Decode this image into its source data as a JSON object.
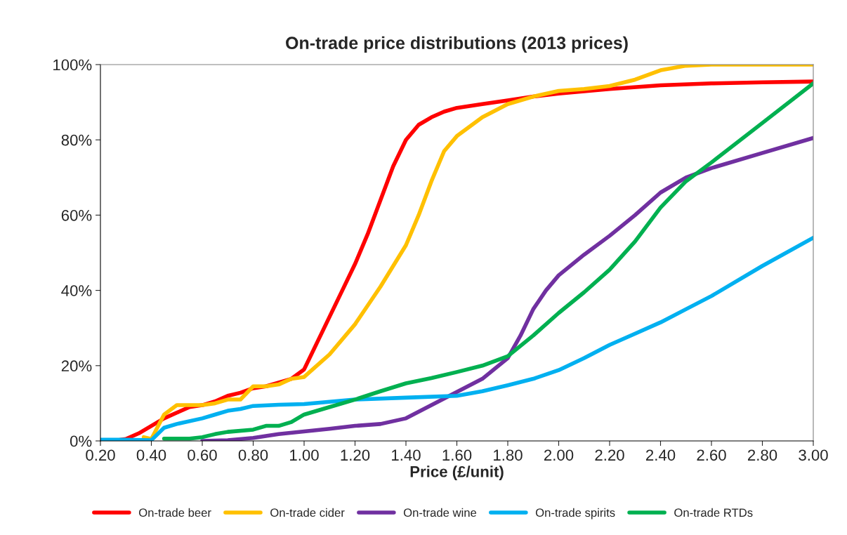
{
  "chart_data": {
    "type": "line",
    "title": "On-trade price distributions (2013 prices)",
    "xlabel": "Price (£/unit)",
    "xlim": [
      0.2,
      3.0
    ],
    "xticks": [
      {
        "value": 0.2,
        "label": "0.20"
      },
      {
        "value": 0.4,
        "label": "0.40"
      },
      {
        "value": 0.6,
        "label": "0.60"
      },
      {
        "value": 0.8,
        "label": "0.80"
      },
      {
        "value": 1.0,
        "label": "1.00"
      },
      {
        "value": 1.2,
        "label": "1.20"
      },
      {
        "value": 1.4,
        "label": "1.40"
      },
      {
        "value": 1.6,
        "label": "1.60"
      },
      {
        "value": 1.8,
        "label": "1.80"
      },
      {
        "value": 2.0,
        "label": "2.00"
      },
      {
        "value": 2.2,
        "label": "2.20"
      },
      {
        "value": 2.4,
        "label": "2.40"
      },
      {
        "value": 2.6,
        "label": "2.60"
      },
      {
        "value": 2.8,
        "label": "2.80"
      },
      {
        "value": 3.0,
        "label": "3.00"
      }
    ],
    "ylim": [
      0,
      100
    ],
    "yticks": [
      {
        "value": 0,
        "label": "0%"
      },
      {
        "value": 20,
        "label": "20%"
      },
      {
        "value": 40,
        "label": "40%"
      },
      {
        "value": 60,
        "label": "60%"
      },
      {
        "value": 80,
        "label": "80%"
      },
      {
        "value": 100,
        "label": "100%"
      }
    ],
    "grid": false,
    "legend": "bottom",
    "marker": "none",
    "line_style": "solid",
    "series": [
      {
        "name": "On-trade beer",
        "color": "#ff0000",
        "x": [
          0.2,
          0.25,
          0.3,
          0.35,
          0.4,
          0.45,
          0.5,
          0.55,
          0.6,
          0.65,
          0.7,
          0.75,
          0.8,
          0.85,
          0.9,
          0.95,
          1.0,
          1.05,
          1.1,
          1.15,
          1.2,
          1.25,
          1.3,
          1.35,
          1.4,
          1.45,
          1.5,
          1.55,
          1.6,
          1.7,
          1.8,
          1.9,
          2.0,
          2.2,
          2.4,
          2.6,
          2.8,
          3.0
        ],
        "values": [
          0,
          0,
          0.5,
          2,
          4,
          6,
          7.5,
          9,
          9.5,
          10.5,
          12,
          12.8,
          14,
          14.5,
          15.5,
          16.5,
          19,
          26,
          33,
          40,
          47,
          55,
          64,
          73,
          80,
          84,
          86,
          87.5,
          88.5,
          89.5,
          90.5,
          91.5,
          92.3,
          93.5,
          94.5,
          95,
          95.3,
          95.5
        ]
      },
      {
        "name": "On-trade cider",
        "color": "#ffc000",
        "x": [
          0.37,
          0.4,
          0.45,
          0.5,
          0.55,
          0.6,
          0.65,
          0.7,
          0.75,
          0.8,
          0.85,
          0.9,
          0.95,
          1.0,
          1.1,
          1.2,
          1.3,
          1.4,
          1.45,
          1.5,
          1.55,
          1.6,
          1.7,
          1.8,
          1.9,
          2.0,
          2.1,
          2.2,
          2.3,
          2.4,
          2.5,
          2.6,
          3.0
        ],
        "values": [
          1,
          0.5,
          7,
          9.5,
          9.5,
          9.5,
          10,
          11,
          11,
          14.5,
          14.5,
          15,
          16.5,
          17,
          23,
          31,
          41,
          52,
          60,
          69,
          77,
          81,
          86,
          89.5,
          91.5,
          93,
          93.5,
          94.3,
          96,
          98.5,
          99.7,
          100,
          100
        ]
      },
      {
        "name": "On-trade wine",
        "color": "#7030a0",
        "x": [
          0.6,
          0.7,
          0.8,
          0.9,
          1.0,
          1.1,
          1.2,
          1.3,
          1.4,
          1.5,
          1.6,
          1.7,
          1.8,
          1.85,
          1.9,
          1.95,
          2.0,
          2.1,
          2.2,
          2.3,
          2.4,
          2.5,
          2.6,
          2.8,
          3.0
        ],
        "values": [
          0,
          0.2,
          0.8,
          1.8,
          2.5,
          3.2,
          4,
          4.5,
          6,
          9.5,
          13,
          16.5,
          22,
          28,
          35,
          40,
          44,
          49.5,
          54.5,
          60,
          66,
          70,
          72.5,
          76.5,
          80.5
        ]
      },
      {
        "name": "On-trade spirits",
        "color": "#00b0f0",
        "x": [
          0.2,
          0.3,
          0.4,
          0.45,
          0.5,
          0.6,
          0.65,
          0.7,
          0.75,
          0.8,
          0.9,
          1.0,
          1.1,
          1.2,
          1.4,
          1.6,
          1.7,
          1.8,
          1.9,
          2.0,
          2.1,
          2.2,
          2.3,
          2.4,
          2.5,
          2.6,
          2.8,
          3.0
        ],
        "values": [
          0.3,
          0.3,
          0.2,
          3.5,
          4.5,
          6,
          7,
          8,
          8.5,
          9.3,
          9.6,
          9.8,
          10.4,
          11,
          11.5,
          12,
          13.2,
          14.8,
          16.5,
          18.8,
          22,
          25.5,
          28.5,
          31.5,
          35,
          38.5,
          46.5,
          54
        ]
      },
      {
        "name": "On-trade RTDs",
        "color": "#00b050",
        "x": [
          0.45,
          0.55,
          0.6,
          0.65,
          0.7,
          0.8,
          0.85,
          0.9,
          0.95,
          1.0,
          1.1,
          1.2,
          1.3,
          1.4,
          1.5,
          1.6,
          1.7,
          1.8,
          1.9,
          2.0,
          2.1,
          2.2,
          2.3,
          2.4,
          2.5,
          2.6,
          2.8,
          3.0
        ],
        "values": [
          0.6,
          0.6,
          1,
          1.8,
          2.4,
          3,
          4,
          4,
          5,
          7,
          9,
          11,
          13.2,
          15.3,
          16.7,
          18.3,
          20,
          22.5,
          28,
          34,
          39.5,
          45.5,
          53,
          62,
          69,
          74,
          84.5,
          95
        ]
      }
    ]
  }
}
